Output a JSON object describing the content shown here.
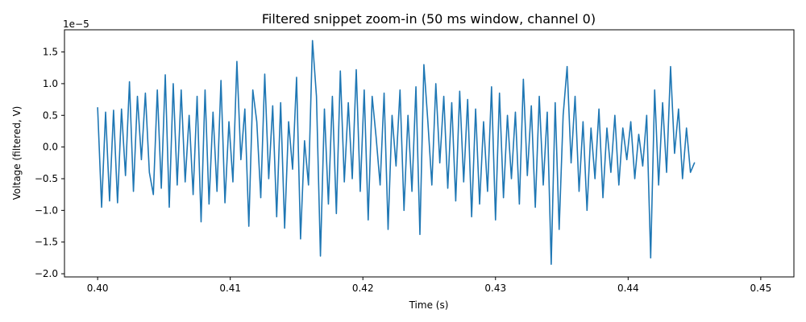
{
  "chart_data": {
    "type": "line",
    "title": "Filtered snippet zoom-in (50 ms window, channel 0)",
    "xlabel": "Time (s)",
    "ylabel": "Voltage (filtered, V)",
    "y_offset_label": "1e−5",
    "xlim": [
      0.3975,
      0.4525
    ],
    "ylim": [
      -2.05,
      1.85
    ],
    "y_scale_factor": 1e-05,
    "grid": false,
    "x_ticks": [
      0.4,
      0.41,
      0.42,
      0.43,
      0.44,
      0.45
    ],
    "x_tick_labels": [
      "0.40",
      "0.41",
      "0.42",
      "0.43",
      "0.44",
      "0.45"
    ],
    "y_ticks": [
      -2.0,
      -1.5,
      -1.0,
      -0.5,
      0.0,
      0.5,
      1.0,
      1.5
    ],
    "y_tick_labels": [
      "−2.0",
      "−1.5",
      "−1.0",
      "−0.5",
      "0.0",
      "0.5",
      "1.0",
      "1.5"
    ],
    "series": [
      {
        "color": "#1f77b4",
        "x": [
          0.4,
          0.4003,
          0.4006,
          0.4009,
          0.4012,
          0.4015,
          0.4018,
          0.4021,
          0.4024,
          0.4027,
          0.403,
          0.4033,
          0.4036,
          0.4039,
          0.4042,
          0.4045,
          0.4048,
          0.4051,
          0.4054,
          0.4057,
          0.406,
          0.4063,
          0.4066,
          0.4069,
          0.4072,
          0.4075,
          0.4078,
          0.4081,
          0.4084,
          0.4087,
          0.409,
          0.4093,
          0.4096,
          0.4099,
          0.4102,
          0.4105,
          0.4108,
          0.4111,
          0.4114,
          0.4117,
          0.412,
          0.4123,
          0.4126,
          0.4129,
          0.4132,
          0.4135,
          0.4138,
          0.4141,
          0.4144,
          0.4147,
          0.415,
          0.4153,
          0.4156,
          0.4159,
          0.4162,
          0.4165,
          0.4168,
          0.4171,
          0.4174,
          0.4177,
          0.418,
          0.4183,
          0.4186,
          0.4189,
          0.4192,
          0.4195,
          0.4198,
          0.4201,
          0.4204,
          0.4207,
          0.421,
          0.4213,
          0.4216,
          0.4219,
          0.4222,
          0.4225,
          0.4228,
          0.4231,
          0.4234,
          0.4237,
          0.424,
          0.4243,
          0.4246,
          0.4249,
          0.4252,
          0.4255,
          0.4258,
          0.4261,
          0.4264,
          0.4267,
          0.427,
          0.4273,
          0.4276,
          0.4279,
          0.4282,
          0.4285,
          0.4288,
          0.4291,
          0.4294,
          0.4297,
          0.43,
          0.4303,
          0.4306,
          0.4309,
          0.4312,
          0.4315,
          0.4318,
          0.4321,
          0.4324,
          0.4327,
          0.433,
          0.4333,
          0.4336,
          0.4339,
          0.4342,
          0.4345,
          0.4348,
          0.4351,
          0.4354,
          0.4357,
          0.436,
          0.4363,
          0.4366,
          0.4369,
          0.4372,
          0.4375,
          0.4378,
          0.4381,
          0.4384,
          0.4387,
          0.439,
          0.4393,
          0.4396,
          0.4399,
          0.4402,
          0.4405,
          0.4408,
          0.4411,
          0.4414,
          0.4417,
          0.442,
          0.4423,
          0.4426,
          0.4429,
          0.4432,
          0.4435,
          0.4438,
          0.4441,
          0.4444,
          0.4447,
          0.445
        ],
        "values": [
          0.62,
          -0.95,
          0.55,
          -0.85,
          0.58,
          -0.88,
          0.6,
          -0.45,
          1.03,
          -0.7,
          0.8,
          -0.2,
          0.85,
          -0.4,
          -0.75,
          0.9,
          -0.65,
          1.14,
          -0.95,
          1.0,
          -0.6,
          0.9,
          -0.55,
          0.5,
          -0.75,
          0.8,
          -1.18,
          0.9,
          -0.9,
          0.55,
          -0.7,
          1.05,
          -0.88,
          0.4,
          -0.55,
          1.35,
          -0.2,
          0.6,
          -1.25,
          0.9,
          0.4,
          -0.8,
          1.15,
          -0.5,
          0.65,
          -1.1,
          0.7,
          -1.28,
          0.4,
          -0.35,
          1.1,
          -1.45,
          0.1,
          -0.6,
          1.68,
          0.8,
          -1.72,
          0.6,
          -0.9,
          0.8,
          -1.05,
          1.2,
          -0.55,
          0.7,
          -0.5,
          1.22,
          -0.7,
          0.9,
          -1.15,
          0.8,
          0.15,
          -0.6,
          0.85,
          -1.3,
          0.5,
          -0.3,
          0.9,
          -1.0,
          0.5,
          -0.7,
          0.95,
          -1.38,
          1.3,
          0.4,
          -0.6,
          1.0,
          -0.25,
          0.8,
          -0.65,
          0.7,
          -0.85,
          0.88,
          -0.55,
          0.75,
          -1.1,
          0.6,
          -0.9,
          0.4,
          -0.7,
          0.95,
          -1.15,
          0.85,
          -0.8,
          0.5,
          -0.5,
          0.55,
          -0.9,
          1.07,
          -0.45,
          0.65,
          -0.95,
          0.8,
          -0.6,
          0.55,
          -1.85,
          0.7,
          -1.3,
          0.5,
          1.27,
          -0.25,
          0.8,
          -0.7,
          0.4,
          -1.0,
          0.3,
          -0.5,
          0.6,
          -0.8,
          0.3,
          -0.4,
          0.5,
          -0.6,
          0.3,
          -0.2,
          0.4,
          -0.5,
          0.2,
          -0.3,
          0.5,
          -1.75,
          0.9,
          -0.6,
          0.7,
          -0.4,
          1.27,
          -0.1,
          0.6,
          -0.5,
          0.3,
          -0.4,
          -0.25
        ]
      }
    ]
  }
}
